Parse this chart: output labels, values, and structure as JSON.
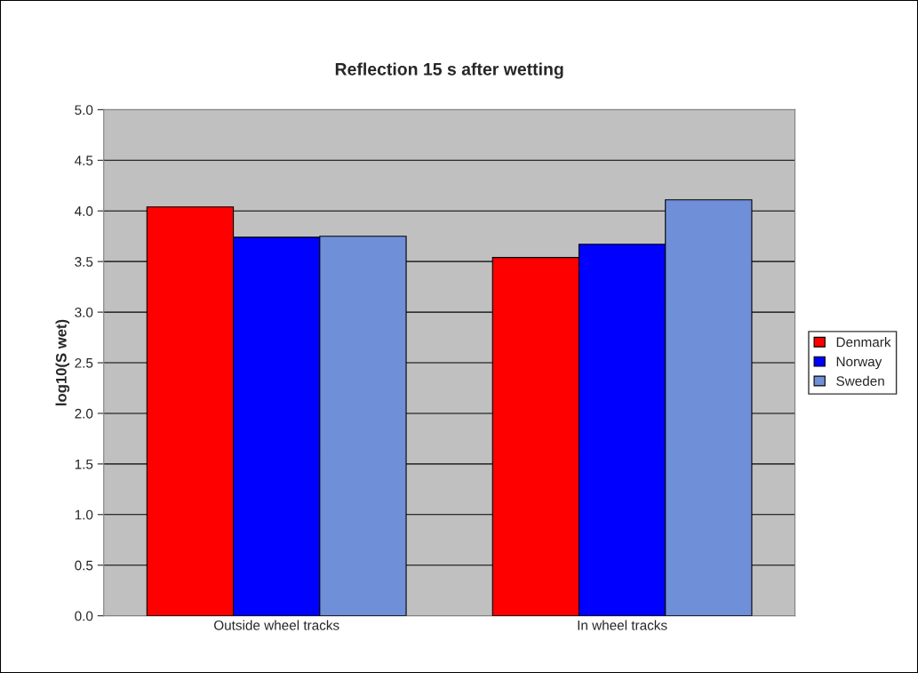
{
  "chart_data": {
    "type": "bar",
    "title": "Reflection 15 s after wetting",
    "ylabel": "log10(S wet)",
    "categories": [
      "Outside wheel tracks",
      "In wheel tracks"
    ],
    "series": [
      {
        "name": "Denmark",
        "color": "#ff0000",
        "values": [
          4.04,
          3.54
        ]
      },
      {
        "name": "Norway",
        "color": "#0000ff",
        "values": [
          3.74,
          3.67
        ]
      },
      {
        "name": "Sweden",
        "color": "#6f8fd8",
        "values": [
          3.75,
          4.11
        ]
      }
    ],
    "ylim": [
      0,
      5
    ],
    "yticks": [
      {
        "value": 0,
        "label": "0.0"
      },
      {
        "value": 0.5,
        "label": "0.5"
      },
      {
        "value": 1,
        "label": "1.0"
      },
      {
        "value": 1.5,
        "label": "1.5"
      },
      {
        "value": 2,
        "label": "2.0"
      },
      {
        "value": 2.5,
        "label": "2.5"
      },
      {
        "value": 3,
        "label": "3.0"
      },
      {
        "value": 3.5,
        "label": "3.5"
      },
      {
        "value": 4,
        "label": "4.0"
      },
      {
        "value": 4.5,
        "label": "4.5"
      },
      {
        "value": 5,
        "label": "5.0"
      }
    ],
    "grid": "y",
    "legend": "right"
  }
}
